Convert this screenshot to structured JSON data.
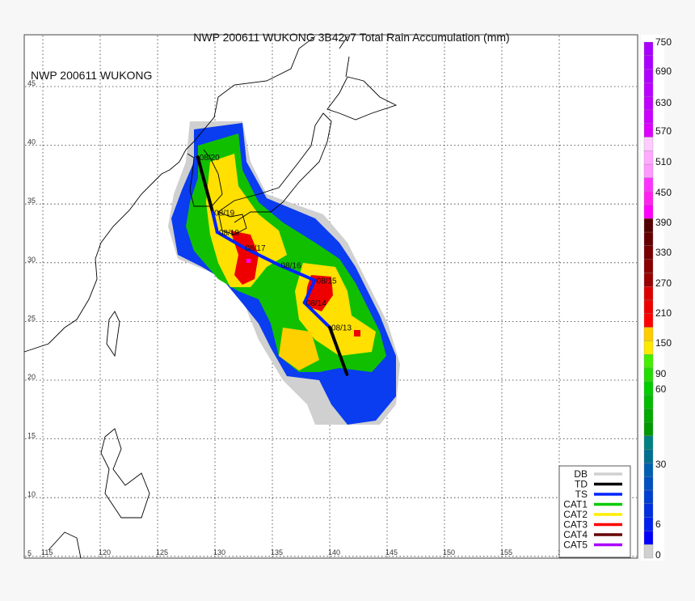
{
  "title": "NWP 200611 WUKONG 3B42v7 Total Rain Accumulation (mm)",
  "inset_label": "NWP 200611 WUKONG",
  "map": {
    "lon_ticks": [
      "115",
      "120",
      "125",
      "130",
      "135",
      "140",
      "145",
      "150",
      "155",
      "160"
    ],
    "lat_ticks": [
      "45",
      "40",
      "35",
      "30",
      "25",
      "20",
      "15",
      "10",
      "5"
    ],
    "grid": true
  },
  "track": [
    {
      "date": "08/20",
      "lon": 128.5,
      "lat": 39.0,
      "cat": "TD"
    },
    {
      "date": "08/19",
      "lon": 129.8,
      "lat": 34.3,
      "cat": "TD"
    },
    {
      "date": "08/18",
      "lon": 130.2,
      "lat": 32.6,
      "cat": "TS"
    },
    {
      "date": "08/17",
      "lon": 132.5,
      "lat": 31.3,
      "cat": "TS"
    },
    {
      "date": "08/16",
      "lon": 135.6,
      "lat": 29.8,
      "cat": "TS"
    },
    {
      "date": "08/15",
      "lon": 138.7,
      "lat": 28.5,
      "cat": "TS"
    },
    {
      "date": "08/14",
      "lon": 137.8,
      "lat": 26.6,
      "cat": "TS"
    },
    {
      "date": "08/13",
      "lon": 140.0,
      "lat": 24.5,
      "cat": "TS"
    },
    {
      "date": "",
      "lon": 141.5,
      "lat": 20.5,
      "cat": "TD"
    }
  ],
  "legend": [
    {
      "label": "DB",
      "color": "#d0d0d0"
    },
    {
      "label": "TD",
      "color": "#000000"
    },
    {
      "label": "TS",
      "color": "#0022ff"
    },
    {
      "label": "CAT1",
      "color": "#00cc00"
    },
    {
      "label": "CAT2",
      "color": "#ffee00"
    },
    {
      "label": "CAT3",
      "color": "#ff0000"
    },
    {
      "label": "CAT4",
      "color": "#660000"
    },
    {
      "label": "CAT5",
      "color": "#aa00ff"
    }
  ],
  "colorbar": {
    "labels": [
      "750",
      "690",
      "630",
      "570",
      "510",
      "450",
      "390",
      "330",
      "270",
      "210",
      "150",
      "90",
      "60",
      "30",
      "6",
      "0"
    ],
    "colors": [
      "#aa00ff",
      "#aa00ff",
      "#b000ff",
      "#bb00ff",
      "#c000ff",
      "#cc00ff",
      "#dd00ff",
      "#ffccff",
      "#ffaaff",
      "#ff99ff",
      "#ff33ff",
      "#ff22ee",
      "#ff00ff",
      "#550000",
      "#660000",
      "#770000",
      "#880000",
      "#990000",
      "#dd0000",
      "#ee0000",
      "#ff0000",
      "#ffcc00",
      "#ffe800",
      "#44ee00",
      "#22dd00",
      "#00cc00",
      "#00bb00",
      "#00aa00",
      "#009900",
      "#008080",
      "#007090",
      "#0060b0",
      "#0050c0",
      "#0040d0",
      "#0030e0",
      "#0020f0",
      "#0000ff",
      "#d0d0d0"
    ]
  }
}
